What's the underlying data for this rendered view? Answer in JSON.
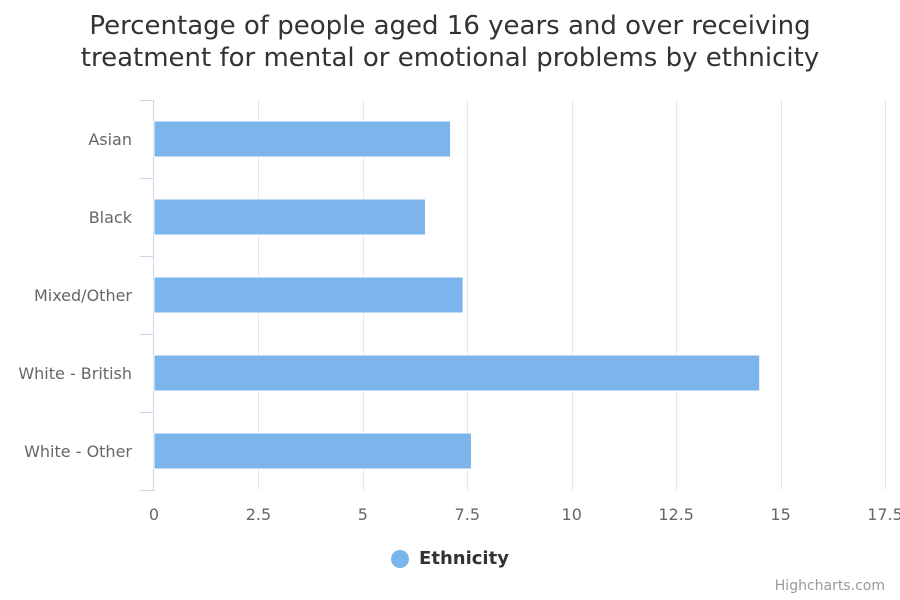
{
  "chart_data": {
    "type": "bar",
    "orientation": "horizontal",
    "title_lines": [
      "Percentage of people aged 16 years and over receiving",
      "treatment for mental or emotional problems by ethnicity"
    ],
    "categories": [
      "Asian",
      "Black",
      "Mixed/Other",
      "White - British",
      "White - Other"
    ],
    "series": [
      {
        "name": "Ethnicity",
        "values": [
          7.1,
          6.5,
          7.4,
          14.5,
          7.6
        ],
        "color": "#7cb5ec"
      }
    ],
    "xlim": [
      0,
      17.5
    ],
    "ticks": [
      "0",
      "2.5",
      "5",
      "7.5",
      "10",
      "12.5",
      "15",
      "17.5"
    ],
    "tick_values": [
      0,
      2.5,
      5,
      7.5,
      10,
      12.5,
      15,
      17.5
    ],
    "grid": true,
    "legend_position": "bottom-center"
  },
  "credits": "Highcharts.com"
}
